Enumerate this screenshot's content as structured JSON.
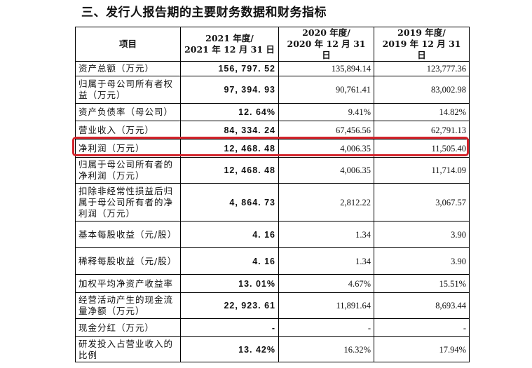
{
  "heading": "三、发行人报告期的主要财务数据和财务指标",
  "table": {
    "header": {
      "item": "项目",
      "col1_line1": "2021 年度/",
      "col1_line2": "2021 年 12 月 31 日",
      "col2_line1": "2020 年度/",
      "col2_line2": "2020 年 12 月 31 日",
      "col3_line1": "2019 年度/",
      "col3_line2": "2019 年 12 月 31 日"
    },
    "rows": [
      {
        "label": "资产总额（万元）",
        "v2021": "156, 797. 52",
        "v2020": "135,894.14",
        "v2019": "123,777.36"
      },
      {
        "label": "归属于母公司所有者权益（万元）",
        "v2021": "97, 394. 93",
        "v2020": "90,761.41",
        "v2019": "83,002.98"
      },
      {
        "label": "资产负债率（母公司）",
        "v2021": "12. 64%",
        "v2020": "9.41%",
        "v2019": "14.82%"
      },
      {
        "label": "营业收入（万元）",
        "v2021": "84, 334. 24",
        "v2020": "67,456.56",
        "v2019": "62,791.13"
      },
      {
        "label": "净利润（万元）",
        "v2021": "12, 468. 48",
        "v2020": "4,006.35",
        "v2019": "11,505.40"
      },
      {
        "label": "归属于母公司所有者的净利润（万元）",
        "v2021": "12, 468. 48",
        "v2020": "4,006.35",
        "v2019": "11,714.09"
      },
      {
        "label": "扣除非经常性损益后归属于母公司所有者的净利润（万元）",
        "v2021": "4, 864. 73",
        "v2020": "2,812.22",
        "v2019": "3,067.57"
      },
      {
        "label": "基本每股收益（元/股）",
        "v2021": "4. 16",
        "v2020": "1.34",
        "v2019": "3.90"
      },
      {
        "label": "稀释每股收益（元/股）",
        "v2021": "4. 16",
        "v2020": "1.34",
        "v2019": "3.90"
      },
      {
        "label": "加权平均净资产收益率",
        "v2021": "13. 01%",
        "v2020": "4.67%",
        "v2019": "15.51%"
      },
      {
        "label": "经营活动产生的现金流量净额（万元）",
        "v2021": "22, 923. 61",
        "v2020": "11,891.64",
        "v2019": "8,693.44"
      },
      {
        "label": "现金分红（万元）",
        "v2021": "-",
        "v2020": "-",
        "v2019": "-"
      },
      {
        "label": "研发投入占营业收入的比例",
        "v2021": "13. 42%",
        "v2020": "16.32%",
        "v2019": "17.94%"
      }
    ]
  },
  "colors": {
    "highlight": "#d3232b",
    "border": "#000000"
  }
}
